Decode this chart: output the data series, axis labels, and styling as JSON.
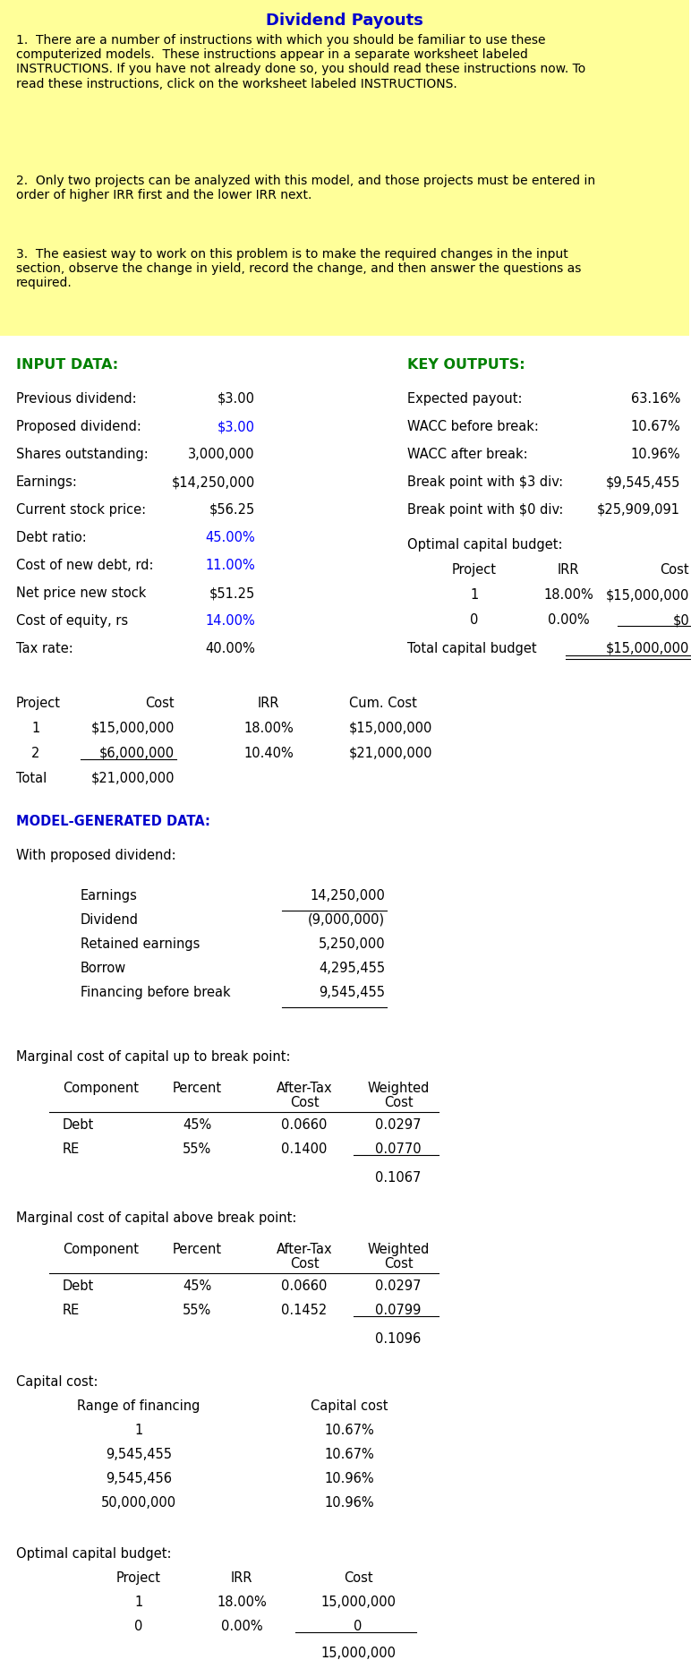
{
  "title": "Dividend Payouts",
  "title_color": "#0000CD",
  "bg_color": "#FFFFFF",
  "yellow_bg": "#FFFF99",
  "blue_color": "#0000FF",
  "green_color": "#008000",
  "model_gen_color": "#0000CD",
  "instruction_text_1": "1.  There are a number of instructions with which you should be familiar to use these\ncomputerized models.  These instructions appear in a separate worksheet labeled\nINSTRUCTIONS. If you have not already done so, you should read these instructions now. To\nread these instructions, click on the worksheet labeled INSTRUCTIONS.",
  "instruction_text_2": "2.  Only two projects can be analyzed with this model, and those projects must be entered in\norder of higher IRR first and the lower IRR next.",
  "instruction_text_3": "3.  The easiest way to work on this problem is to make the required changes in the input\nsection, observe the change in yield, record the change, and then answer the questions as\nrequired.",
  "input_rows": [
    [
      "Previous dividend:",
      "$3.00",
      "black"
    ],
    [
      "Proposed dividend:",
      "$3.00",
      "blue"
    ],
    [
      "Shares outstanding:",
      "3,000,000",
      "black"
    ],
    [
      "Earnings:",
      "$14,250,000",
      "black"
    ],
    [
      "Current stock price:",
      "$56.25",
      "black"
    ],
    [
      "Debt ratio:",
      "45.00%",
      "blue"
    ],
    [
      "Cost of new debt, rd:",
      "11.00%",
      "blue"
    ],
    [
      "Net price new stock",
      "$51.25",
      "black"
    ],
    [
      "Cost of equity, rs",
      "14.00%",
      "blue"
    ],
    [
      "Tax rate:",
      "40.00%",
      "black"
    ]
  ],
  "output_rows": [
    [
      "Expected payout:",
      "63.16%"
    ],
    [
      "WACC before break:",
      "10.67%"
    ],
    [
      "WACC after break:",
      "10.96%"
    ],
    [
      "Break point with $3 div:",
      "$9,545,455"
    ],
    [
      "Break point with $0 div:",
      "$25,909,091"
    ]
  ],
  "earnings_table": [
    [
      "Earnings",
      "14,250,000",
      false,
      false
    ],
    [
      "Dividend",
      "(9,000,000)",
      false,
      true
    ],
    [
      "Retained earnings",
      "5,250,000",
      false,
      false
    ],
    [
      "Borrow",
      "4,295,455",
      false,
      false
    ],
    [
      "Financing before break",
      "9,545,455",
      true,
      false
    ]
  ],
  "mcc_up_rows": [
    [
      "Debt",
      "45%",
      "0.0660",
      "0.0297",
      false
    ],
    [
      "RE",
      "55%",
      "0.1400",
      "0.0770",
      true
    ]
  ],
  "mcc_up_total": "0.1067",
  "mcc_above_rows": [
    [
      "Debt",
      "45%",
      "0.0660",
      "0.0297",
      false
    ],
    [
      "RE",
      "55%",
      "0.1452",
      "0.0799",
      true
    ]
  ],
  "mcc_above_total": "0.1096",
  "capital_cost_rows": [
    [
      "1",
      "10.67%"
    ],
    [
      "9,545,455",
      "10.67%"
    ],
    [
      "9,545,456",
      "10.96%"
    ],
    [
      "50,000,000",
      "10.96%"
    ]
  ]
}
